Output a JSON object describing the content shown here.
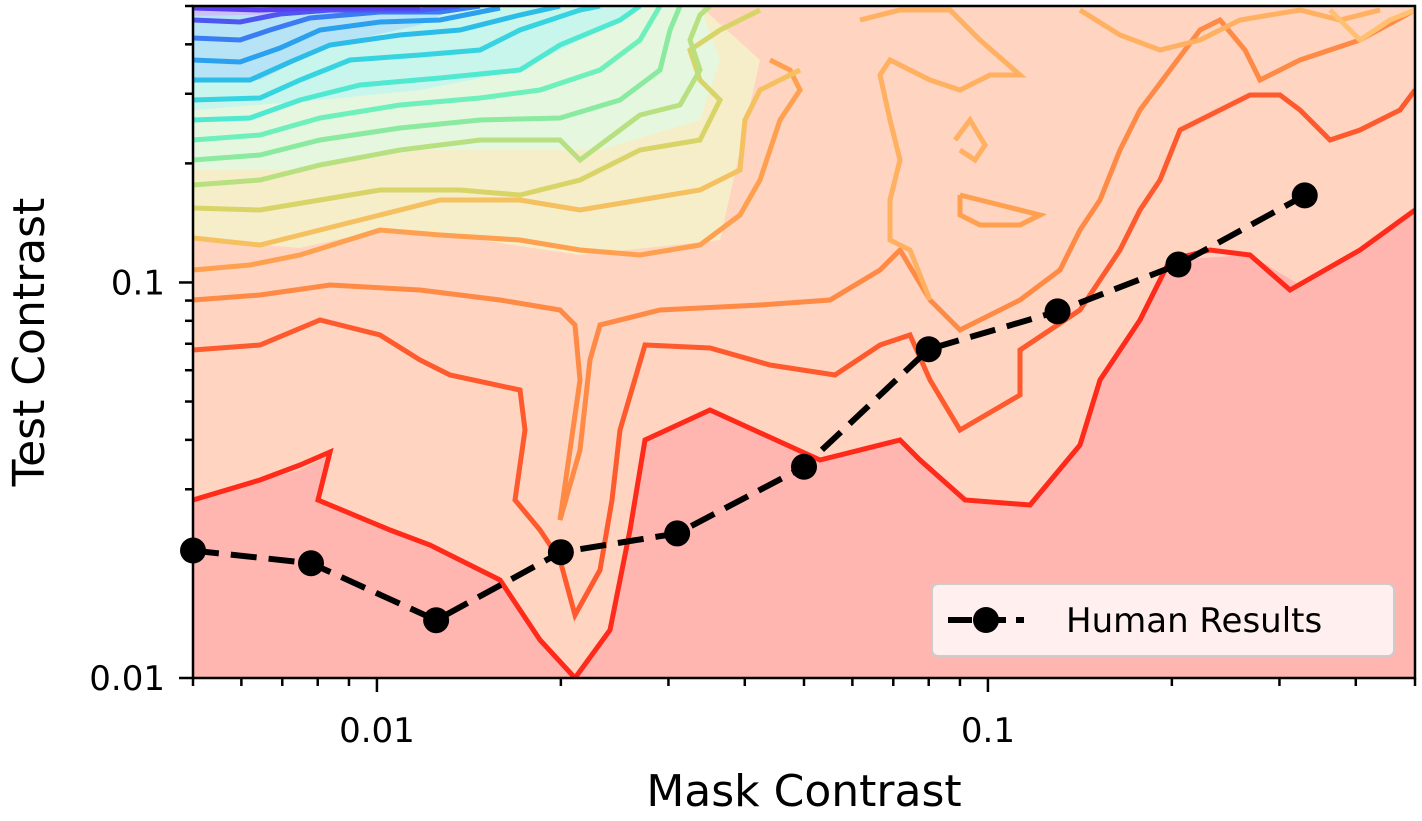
{
  "chart_data": {
    "type": "contour",
    "xlabel": "Mask Contrast",
    "ylabel": "Test Contrast",
    "x_scale": "log",
    "y_scale": "log",
    "xlim": [
      0.005,
      0.5
    ],
    "ylim": [
      0.01,
      0.5
    ],
    "x_tick_labels": [
      {
        "value": 0.01,
        "label": "0.01"
      },
      {
        "value": 0.1,
        "label": "0.1"
      }
    ],
    "y_tick_labels": [
      {
        "value": 0.01,
        "label": "0.01"
      },
      {
        "value": 0.1,
        "label": "0.1"
      }
    ],
    "grid": false,
    "legend_position": "bottom-right",
    "series": [
      {
        "name": "Human Results",
        "style": "black dashed line with filled circle markers",
        "color": "#000000",
        "points": [
          {
            "x": 0.005,
            "y": 0.021
          },
          {
            "x": 0.0078,
            "y": 0.0195
          },
          {
            "x": 0.0125,
            "y": 0.014
          },
          {
            "x": 0.02,
            "y": 0.0208
          },
          {
            "x": 0.031,
            "y": 0.0232
          },
          {
            "x": 0.05,
            "y": 0.0342
          },
          {
            "x": 0.08,
            "y": 0.0678
          },
          {
            "x": 0.13,
            "y": 0.0845
          },
          {
            "x": 0.205,
            "y": 0.111
          },
          {
            "x": 0.33,
            "y": 0.166
          }
        ]
      }
    ],
    "contour_colormap": "rainbow (red = low, violet = high)",
    "contour_colors": {
      "low_fill": "#ffb6b1",
      "low_line": "#ff2a1a",
      "mid_line": "#ff8c4a",
      "high_line": "#3fd9c9",
      "top_line": "#5a3cf0"
    }
  }
}
